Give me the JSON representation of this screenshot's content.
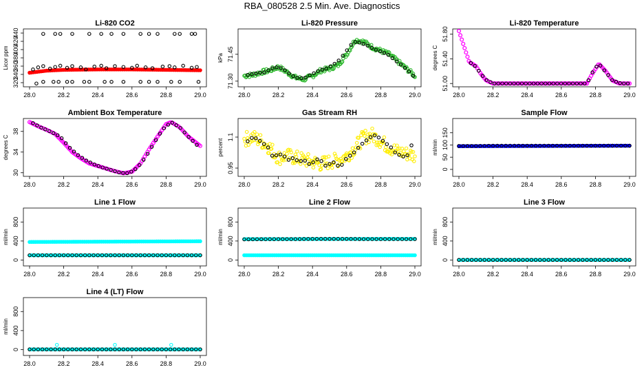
{
  "title": "RBA_080528  2.5 Min. Ave. Diagnostics",
  "chart_data": [
    {
      "type": "scatter",
      "title": "Li-820 CO2",
      "xlabel": "",
      "ylabel": "Licor ppm",
      "xlim": [
        28.0,
        29.0
      ],
      "ylim": [
        315,
        445
      ],
      "xticks": [
        "28.0",
        "28.2",
        "28.4",
        "28.6",
        "28.8",
        "29.0"
      ],
      "yticks": [
        320,
        340,
        360,
        380,
        400,
        420,
        440
      ],
      "series": [
        {
          "name": "raw",
          "color": "#ff0000",
          "shape": "band",
          "x": [
            28.0,
            28.1,
            28.2,
            28.4,
            28.6,
            28.8,
            29.0
          ],
          "y": [
            344,
            349,
            351,
            352,
            352,
            351,
            350
          ]
        },
        {
          "name": "avg",
          "color": "#000000",
          "shape": "ring",
          "scatter": true,
          "x": [
            28.02,
            28.05,
            28.08,
            28.12,
            28.15,
            28.18,
            28.22,
            28.25,
            28.3,
            28.33,
            28.38,
            28.42,
            28.45,
            28.5,
            28.55,
            28.6,
            28.63,
            28.68,
            28.72,
            28.78,
            28.82,
            28.85,
            28.9,
            28.95,
            28.98,
            28.04,
            28.08,
            28.14,
            28.17,
            28.22,
            28.25,
            28.32,
            28.35,
            28.44,
            28.48,
            28.55,
            28.65,
            28.7,
            28.75,
            28.83,
            28.88,
            28.99,
            28.08,
            28.15,
            28.18,
            28.25,
            28.35,
            28.42,
            28.48,
            28.55,
            28.65,
            28.7,
            28.75,
            28.85,
            28.88,
            28.95,
            28.97
          ],
          "y": [
            352,
            357,
            360,
            354,
            358,
            361,
            356,
            360,
            357,
            352,
            359,
            361,
            355,
            360,
            358,
            356,
            361,
            357,
            355,
            359,
            360,
            357,
            361,
            356,
            358,
            318,
            322,
            322,
            322,
            322,
            322,
            322,
            322,
            322,
            322,
            322,
            322,
            322,
            322,
            322,
            322,
            322,
            438,
            438,
            438,
            438,
            438,
            438,
            438,
            438,
            438,
            438,
            438,
            438,
            438,
            438,
            438
          ]
        }
      ]
    },
    {
      "type": "scatter",
      "title": "Li-820 Pressure",
      "xlabel": "",
      "ylabel": "kPa",
      "xlim": [
        28.0,
        29.0
      ],
      "ylim": [
        71.28,
        71.58
      ],
      "xticks": [
        "28.0",
        "28.2",
        "28.4",
        "28.6",
        "28.8",
        "29.0"
      ],
      "yticks": [
        71.3,
        71.45
      ],
      "series": [
        {
          "name": "raw",
          "color": "#2db82d",
          "shape": "scatter",
          "noise": 0.012,
          "x": [
            28.0,
            28.05,
            28.1,
            28.15,
            28.2,
            28.25,
            28.3,
            28.35,
            28.4,
            28.45,
            28.5,
            28.55,
            28.6,
            28.65,
            28.7,
            28.75,
            28.8,
            28.85,
            28.9,
            28.95,
            29.0
          ],
          "y": [
            71.33,
            71.335,
            71.35,
            71.36,
            71.38,
            71.35,
            71.32,
            71.31,
            71.33,
            71.36,
            71.37,
            71.39,
            71.45,
            71.53,
            71.52,
            71.49,
            71.47,
            71.45,
            71.41,
            71.37,
            71.33
          ]
        },
        {
          "name": "avg",
          "color": "#000000",
          "shape": "ring",
          "x": [
            28.02,
            28.08,
            28.12,
            28.16,
            28.2,
            28.24,
            28.28,
            28.32,
            28.36,
            28.4,
            28.44,
            28.48,
            28.52,
            28.56,
            28.6,
            28.64,
            28.68,
            28.72,
            28.76,
            28.8,
            28.84,
            28.88,
            28.92,
            28.96,
            28.99
          ],
          "y": [
            71.335,
            71.345,
            71.35,
            71.37,
            71.38,
            71.36,
            71.33,
            71.315,
            71.32,
            71.34,
            71.36,
            71.37,
            71.39,
            71.42,
            71.47,
            71.52,
            71.515,
            71.5,
            71.48,
            71.465,
            71.45,
            71.42,
            71.39,
            71.36,
            71.33
          ]
        }
      ]
    },
    {
      "type": "scatter",
      "title": "Li-820 Temperature",
      "xlabel": "",
      "ylabel": "degrees C",
      "xlim": [
        28.0,
        29.0
      ],
      "ylim": [
        50.98,
        51.85
      ],
      "xticks": [
        "28.0",
        "28.2",
        "28.4",
        "28.6",
        "28.8",
        "29.0"
      ],
      "yticks": [
        51.0,
        51.4,
        51.8
      ],
      "series": [
        {
          "name": "raw",
          "color": "#ff00ff",
          "shape": "thick",
          "x": [
            28.0,
            28.03,
            28.06,
            28.1,
            28.13,
            28.16,
            28.2,
            28.4,
            28.6,
            28.75,
            28.78,
            28.82,
            28.86,
            28.9,
            28.94,
            29.0
          ],
          "y": [
            51.85,
            51.6,
            51.35,
            51.28,
            51.15,
            51.05,
            51.0,
            51.0,
            51.0,
            51.0,
            51.15,
            51.32,
            51.2,
            51.05,
            51.0,
            51.0
          ]
        },
        {
          "name": "avg",
          "color": "#000000",
          "shape": "ring",
          "x": [
            28.07,
            28.1,
            28.13,
            28.16,
            28.2,
            28.25,
            28.3,
            28.35,
            28.4,
            28.45,
            28.5,
            28.55,
            28.6,
            28.65,
            28.7,
            28.75,
            28.79,
            28.82,
            28.85,
            28.9,
            28.95,
            28.99
          ],
          "y": [
            51.33,
            51.27,
            51.15,
            51.06,
            51.0,
            51.0,
            51.0,
            51.0,
            51.0,
            51.0,
            51.0,
            51.0,
            51.0,
            51.0,
            51.0,
            51.0,
            51.22,
            51.32,
            51.22,
            51.05,
            51.0,
            51.0
          ]
        }
      ]
    },
    {
      "type": "scatter",
      "title": "Ambient Box Temperature",
      "xlabel": "",
      "ylabel": "degrees C",
      "xlim": [
        28.0,
        29.0
      ],
      "ylim": [
        29.7,
        40.1
      ],
      "xticks": [
        "28.0",
        "28.2",
        "28.4",
        "28.6",
        "28.8",
        "29.0"
      ],
      "yticks": [
        30,
        34,
        38
      ],
      "series": [
        {
          "name": "raw",
          "color": "#ff00ff",
          "shape": "thick",
          "x": [
            28.0,
            28.05,
            28.1,
            28.15,
            28.2,
            28.25,
            28.3,
            28.35,
            28.4,
            28.45,
            28.5,
            28.55,
            28.6,
            28.65,
            28.7,
            28.75,
            28.8,
            28.83,
            28.88,
            28.93,
            29.0
          ],
          "y": [
            39.8,
            39.0,
            38.3,
            37.5,
            35.8,
            34.0,
            32.8,
            31.8,
            31.3,
            30.8,
            30.3,
            29.9,
            30.2,
            31.8,
            34.5,
            37.0,
            39.4,
            39.8,
            38.8,
            37.0,
            35.2
          ]
        },
        {
          "name": "avg",
          "color": "#000000",
          "shape": "ring",
          "x": [
            28.02,
            28.07,
            28.12,
            28.18,
            28.23,
            28.28,
            28.33,
            28.38,
            28.43,
            28.48,
            28.53,
            28.58,
            28.63,
            28.68,
            28.73,
            28.78,
            28.83,
            28.88,
            28.93,
            28.98
          ],
          "y": [
            39.6,
            38.7,
            38.0,
            37.0,
            35.0,
            33.5,
            32.4,
            31.6,
            31.0,
            30.5,
            30.0,
            29.9,
            30.9,
            33.0,
            35.8,
            38.4,
            39.8,
            38.8,
            37.0,
            35.4
          ]
        }
      ]
    },
    {
      "type": "scatter",
      "title": "Gas Stream RH",
      "xlabel": "",
      "ylabel": "percent",
      "xlim": [
        28.0,
        29.0
      ],
      "ylim": [
        0.92,
        1.18
      ],
      "xticks": [
        "28.0",
        "28.2",
        "28.4",
        "28.6",
        "28.8",
        "29.0"
      ],
      "yticks": [
        0.95,
        1.1
      ],
      "series": [
        {
          "name": "raw",
          "color": "#ffee00",
          "shape": "scatter",
          "noise": 0.035,
          "x": [
            28.0,
            28.05,
            28.1,
            28.15,
            28.2,
            28.25,
            28.3,
            28.35,
            28.4,
            28.45,
            28.5,
            28.55,
            28.6,
            28.65,
            28.7,
            28.75,
            28.8,
            28.85,
            28.9,
            28.95,
            29.0
          ],
          "y": [
            1.09,
            1.1,
            1.08,
            1.05,
            1.0,
            1.01,
            1.0,
            0.99,
            0.98,
            0.97,
            0.98,
            0.99,
            1.01,
            1.05,
            1.1,
            1.11,
            1.08,
            1.05,
            1.03,
            1.02,
            1.01
          ]
        },
        {
          "name": "avg",
          "color": "#000000",
          "shape": "ring",
          "x": [
            28.02,
            28.05,
            28.08,
            28.11,
            28.14,
            28.17,
            28.2,
            28.23,
            28.26,
            28.29,
            28.32,
            28.35,
            28.38,
            28.41,
            28.44,
            28.47,
            28.5,
            28.53,
            28.56,
            28.59,
            28.62,
            28.65,
            28.68,
            28.71,
            28.74,
            28.77,
            28.8,
            28.83,
            28.86,
            28.89,
            28.92,
            28.95,
            28.98
          ],
          "y": [
            1.08,
            1.1,
            1.09,
            1.07,
            1.05,
            1.0,
            1.02,
            1.01,
            0.99,
            1.0,
            0.98,
            0.99,
            0.97,
            0.98,
            1.0,
            0.96,
            0.97,
            0.98,
            0.95,
            0.99,
            1.01,
            1.03,
            1.06,
            1.08,
            1.1,
            1.11,
            1.09,
            1.07,
            1.05,
            1.02,
            1.01,
            1.0,
            1.06
          ]
        }
      ]
    },
    {
      "type": "scatter",
      "title": "Sample Flow",
      "xlabel": "",
      "ylabel": "ml/min",
      "xlim": [
        28.0,
        29.0
      ],
      "ylim": [
        -20,
        200
      ],
      "xticks": [
        "28.0",
        "28.2",
        "28.4",
        "28.6",
        "28.8",
        "29.0"
      ],
      "yticks": [
        0,
        50,
        100,
        150
      ],
      "series": [
        {
          "name": "raw",
          "color": "#0000ff",
          "shape": "band",
          "x": [
            28.0,
            29.0
          ],
          "y": [
            95,
            97
          ]
        },
        {
          "name": "avg",
          "color": "#000000",
          "shape": "ring",
          "x": [
            28.0,
            28.1,
            28.2,
            28.3,
            28.4,
            28.5,
            28.6,
            28.7,
            28.8,
            28.9,
            29.0
          ],
          "y": [
            96,
            96,
            97,
            97,
            97,
            97,
            97,
            97,
            97,
            97,
            97
          ]
        }
      ]
    },
    {
      "type": "scatter",
      "title": "Line 1 Flow",
      "xlabel": "",
      "ylabel": "ml/min",
      "xlim": [
        28.0,
        29.0
      ],
      "ylim": [
        -80,
        1050
      ],
      "xticks": [
        "28.0",
        "28.2",
        "28.4",
        "28.6",
        "28.8",
        "29.0"
      ],
      "yticks": [
        0,
        400,
        800
      ],
      "series": [
        {
          "name": "raw-upper",
          "color": "#00ffff",
          "shape": "band",
          "x": [
            28.0,
            29.0
          ],
          "y": [
            380,
            395
          ]
        },
        {
          "name": "raw-lower",
          "color": "#00ffff",
          "shape": "band",
          "x": [
            28.0,
            29.0
          ],
          "y": [
            100,
            100
          ]
        },
        {
          "name": "avg",
          "color": "#000000",
          "shape": "ring",
          "x": [
            28.0,
            28.1,
            28.2,
            28.3,
            28.4,
            28.5,
            28.6,
            28.7,
            28.8,
            28.9,
            29.0
          ],
          "y": [
            100,
            100,
            100,
            100,
            100,
            100,
            100,
            100,
            100,
            100,
            100
          ]
        }
      ]
    },
    {
      "type": "scatter",
      "title": "Line 2 Flow",
      "xlabel": "",
      "ylabel": "ml/min",
      "xlim": [
        28.0,
        29.0
      ],
      "ylim": [
        -80,
        1050
      ],
      "xticks": [
        "28.0",
        "28.2",
        "28.4",
        "28.6",
        "28.8",
        "29.0"
      ],
      "yticks": [
        0,
        400,
        800
      ],
      "series": [
        {
          "name": "raw-upper",
          "color": "#00ffff",
          "shape": "band",
          "x": [
            28.0,
            29.0
          ],
          "y": [
            440,
            445
          ]
        },
        {
          "name": "raw-lower",
          "color": "#00ffff",
          "shape": "band",
          "x": [
            28.0,
            29.0
          ],
          "y": [
            100,
            100
          ]
        },
        {
          "name": "avg",
          "color": "#000000",
          "shape": "ring",
          "x": [
            28.0,
            28.1,
            28.2,
            28.3,
            28.4,
            28.5,
            28.6,
            28.7,
            28.8,
            28.9,
            29.0
          ],
          "y": [
            435,
            438,
            440,
            440,
            445,
            445,
            445,
            440,
            440,
            440,
            440
          ]
        }
      ]
    },
    {
      "type": "scatter",
      "title": "Line 3 Flow",
      "xlabel": "",
      "ylabel": "ml/min",
      "xlim": [
        28.0,
        29.0
      ],
      "ylim": [
        -80,
        1050
      ],
      "xticks": [
        "28.0",
        "28.2",
        "28.4",
        "28.6",
        "28.8",
        "29.0"
      ],
      "yticks": [
        0,
        400,
        800
      ],
      "series": [
        {
          "name": "raw",
          "color": "#00ffff",
          "shape": "band",
          "x": [
            28.0,
            29.0
          ],
          "y": [
            3,
            3
          ]
        },
        {
          "name": "avg",
          "color": "#000000",
          "shape": "ring",
          "x": [
            28.0,
            28.1,
            28.2,
            28.3,
            28.4,
            28.5,
            28.6,
            28.7,
            28.8,
            28.9,
            29.0
          ],
          "y": [
            3,
            3,
            3,
            3,
            3,
            3,
            3,
            3,
            3,
            3,
            3
          ]
        }
      ]
    },
    {
      "type": "scatter",
      "title": "Line 4 (LT) Flow",
      "xlabel": "",
      "ylabel": "ml/min",
      "xlim": [
        28.0,
        29.0
      ],
      "ylim": [
        -80,
        1050
      ],
      "xticks": [
        "28.0",
        "28.2",
        "28.4",
        "28.6",
        "28.8",
        "29.0"
      ],
      "yticks": [
        0,
        400,
        800
      ],
      "series": [
        {
          "name": "raw",
          "color": "#00ffff",
          "shape": "band",
          "x": [
            28.0,
            29.0
          ],
          "y": [
            5,
            5
          ]
        },
        {
          "name": "spikes",
          "color": "#00ffff",
          "shape": "ring",
          "scatter": true,
          "x": [
            28.16,
            28.5,
            28.83
          ],
          "y": [
            100,
            100,
            100
          ]
        },
        {
          "name": "avg",
          "color": "#000000",
          "shape": "ring",
          "x": [
            28.0,
            28.1,
            28.2,
            28.3,
            28.4,
            28.5,
            28.6,
            28.7,
            28.8,
            28.9,
            29.0
          ],
          "y": [
            5,
            5,
            5,
            5,
            5,
            5,
            5,
            5,
            5,
            5,
            5
          ]
        }
      ]
    }
  ]
}
